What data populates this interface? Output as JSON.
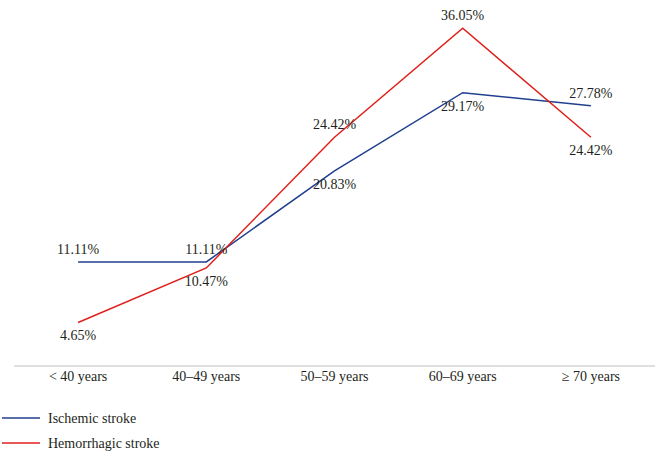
{
  "chart_data": {
    "type": "line",
    "categories": [
      "< 40 years",
      "40–49 years",
      "50–59 years",
      "60–69 years",
      "≥ 70 years"
    ],
    "series": [
      {
        "name": "Ischemic stroke",
        "color": "#203f8f",
        "values": [
          11.11,
          11.11,
          20.83,
          29.17,
          27.78
        ],
        "value_labels": [
          "11.11%",
          "11.11%",
          "20.83%",
          "29.17%",
          "27.78%"
        ]
      },
      {
        "name": "Hemorrhagic stroke",
        "color": "#e0201b",
        "values": [
          4.65,
          10.47,
          24.42,
          36.05,
          24.42
        ],
        "value_labels": [
          "4.65%",
          "10.47%",
          "24.42%",
          "36.05%",
          "24.42%"
        ]
      }
    ],
    "ylim": [
      0,
      38
    ],
    "grid": false,
    "data_labels": true,
    "tick_labels": "x",
    "legend": "bottom-left"
  }
}
